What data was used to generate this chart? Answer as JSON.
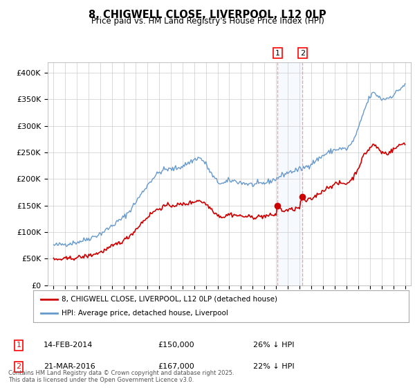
{
  "title1": "8, CHIGWELL CLOSE, LIVERPOOL, L12 0LP",
  "title2": "Price paid vs. HM Land Registry's House Price Index (HPI)",
  "legend_property": "8, CHIGWELL CLOSE, LIVERPOOL, L12 0LP (detached house)",
  "legend_hpi": "HPI: Average price, detached house, Liverpool",
  "footnote": "Contains HM Land Registry data © Crown copyright and database right 2025.\nThis data is licensed under the Open Government Licence v3.0.",
  "sale1_date": "14-FEB-2014",
  "sale1_price": "£150,000",
  "sale1_hpi": "26% ↓ HPI",
  "sale1_date_num": 2014.12,
  "sale1_price_val": 150000,
  "sale2_date": "21-MAR-2016",
  "sale2_price": "£167,000",
  "sale2_hpi": "22% ↓ HPI",
  "sale2_date_num": 2016.25,
  "sale2_price_val": 167000,
  "property_color": "#cc0000",
  "hpi_color": "#6699cc",
  "shade_color": "#ddeeff",
  "background_color": "#ffffff",
  "grid_color": "#cccccc",
  "vline_color": "#ff9999",
  "ylim": [
    0,
    420000
  ],
  "yticks": [
    0,
    50000,
    100000,
    150000,
    200000,
    250000,
    300000,
    350000,
    400000
  ],
  "ytick_labels": [
    "£0",
    "£50K",
    "£100K",
    "£150K",
    "£200K",
    "£250K",
    "£300K",
    "£350K",
    "£400K"
  ],
  "xlim_start": 1994.5,
  "xlim_end": 2025.5
}
